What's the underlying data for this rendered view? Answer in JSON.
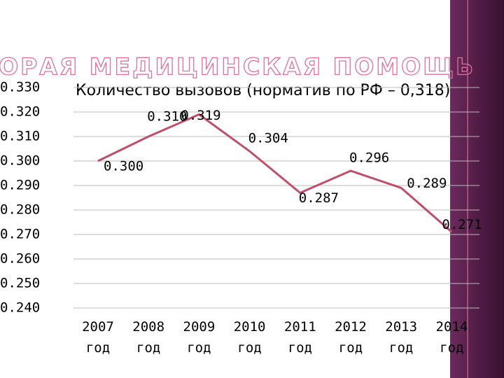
{
  "title": "СКОРАЯ МЕДИЦИНСКАЯ ПОМОЩЬ",
  "chart_data": {
    "type": "line",
    "title": "Количество вызовов (норматив по РФ – 0,318)",
    "categories": [
      "2007 год",
      "2008 год",
      "2009 год",
      "2010 год",
      "2011 год",
      "2012 год",
      "2013 год",
      "2014 год"
    ],
    "series": [
      {
        "name": "Количество вызовов",
        "color": "#c0506a",
        "values": [
          0.3,
          0.31,
          0.319,
          0.304,
          0.287,
          0.296,
          0.289,
          0.271
        ],
        "value_labels": [
          "0.300",
          "0.310",
          "0.319",
          "0.304",
          "0.287",
          "0.296",
          "0.289",
          "0.271"
        ]
      }
    ],
    "ylim": [
      0.24,
      0.33
    ],
    "yticks": [
      {
        "value": 0.24,
        "label": "0.240"
      },
      {
        "value": 0.25,
        "label": "0.250"
      },
      {
        "value": 0.26,
        "label": "0.260"
      },
      {
        "value": 0.27,
        "label": "0.270"
      },
      {
        "value": 0.28,
        "label": "0.280"
      },
      {
        "value": 0.29,
        "label": "0.290"
      },
      {
        "value": 0.3,
        "label": "0.300"
      },
      {
        "value": 0.31,
        "label": "0.310"
      },
      {
        "value": 0.32,
        "label": "0.320"
      },
      {
        "value": 0.33,
        "label": "0.330"
      }
    ],
    "grid": true
  }
}
